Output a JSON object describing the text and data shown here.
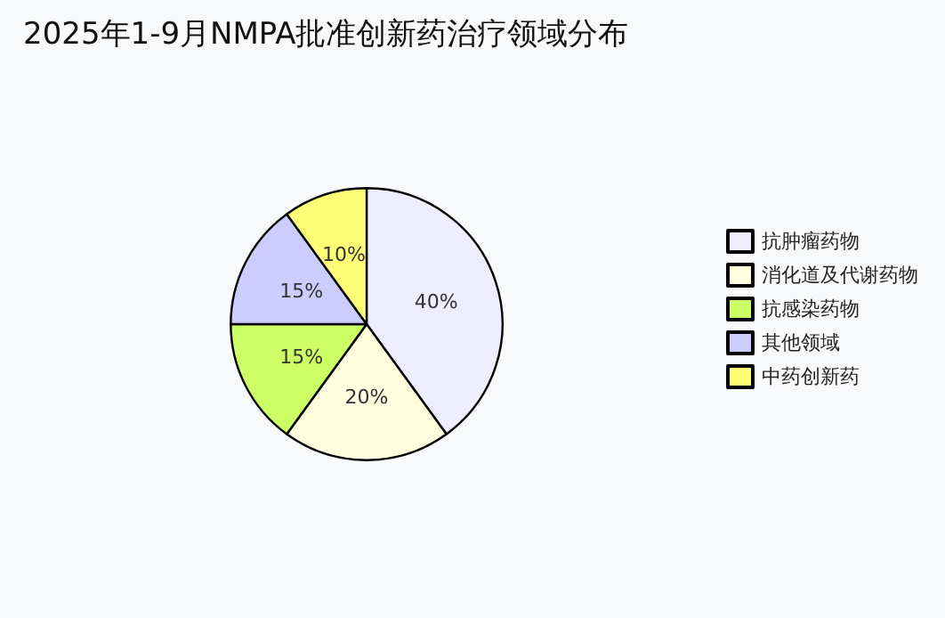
{
  "chart_data": {
    "type": "pie",
    "title": "2025年1-9月NMPA批准创新药治疗领域分布",
    "categories": [
      "抗肿瘤药物",
      "消化道及代谢药物",
      "抗感染药物",
      "其他领域",
      "中药创新药"
    ],
    "values": [
      40,
      20,
      15,
      15,
      10
    ],
    "value_labels": [
      "40%",
      "20%",
      "15%",
      "15%",
      "10%"
    ],
    "colors": [
      "#eeeeff",
      "#ffffe0",
      "#ccff66",
      "#ccccff",
      "#ffff77"
    ],
    "legend": "right"
  }
}
